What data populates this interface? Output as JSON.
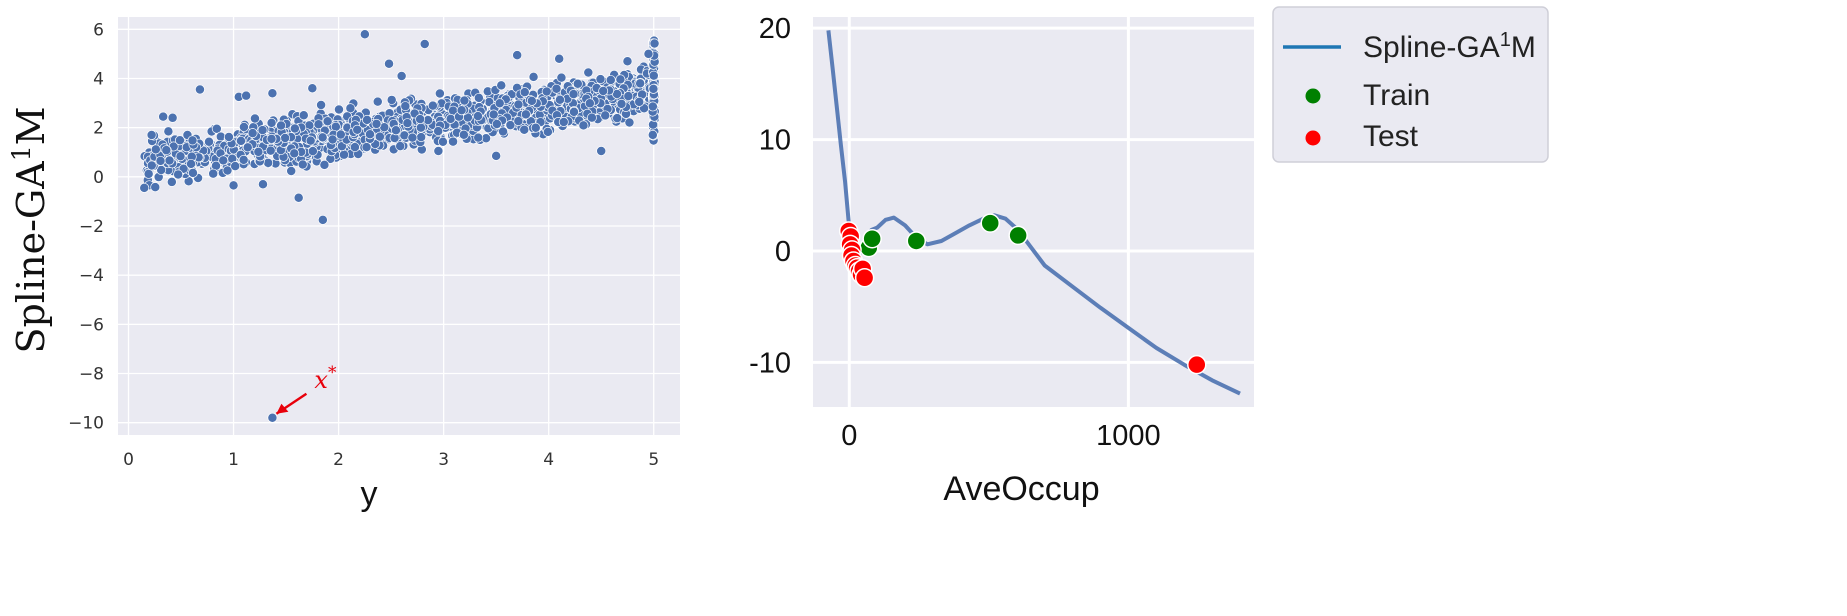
{
  "colors": {
    "panel_bg": "#eaeaf2",
    "grid": "#ffffff",
    "point": "#4c72b0",
    "train": "#008000",
    "test": "#ff0000",
    "spline": "#4c72b0",
    "legend_line": "#1f77b4",
    "annotation": "#e8000b"
  },
  "chart_data": [
    {
      "type": "scatter",
      "xlabel": "y",
      "ylabel": "Spline-GA",
      "ylabel_sup": "1",
      "ylabel_tail": "M",
      "xlim": [
        -0.1,
        5.25
      ],
      "ylim": [
        -10.5,
        6.5
      ],
      "x_ticks": [
        0,
        1,
        2,
        3,
        4,
        5
      ],
      "x_tick_labels": [
        "0",
        "1",
        "2",
        "3",
        "4",
        "5"
      ],
      "y_ticks": [
        6,
        4,
        2,
        0,
        -2,
        -4,
        -6,
        -8,
        -10
      ],
      "y_tick_labels": [
        "6",
        "4",
        "2",
        "0",
        "−2",
        "−4",
        "−6",
        "−8",
        "−10"
      ],
      "grid": true,
      "cloud_description": "dense point cloud; y rises roughly linearly with x",
      "cloud_trend": {
        "x_range": [
          0.15,
          5.0
        ],
        "intercept": 0.5,
        "slope": 0.6,
        "spread": 0.45
      },
      "outliers": [
        {
          "x": 0.15,
          "y": -0.45
        },
        {
          "x": 0.22,
          "y": 1.7
        },
        {
          "x": 0.33,
          "y": 2.45
        },
        {
          "x": 0.68,
          "y": 3.55
        },
        {
          "x": 1.05,
          "y": 3.25
        },
        {
          "x": 1.12,
          "y": 3.3
        },
        {
          "x": 1.37,
          "y": 3.4
        },
        {
          "x": 1.62,
          "y": -0.85
        },
        {
          "x": 1.85,
          "y": -1.75
        },
        {
          "x": 2.25,
          "y": 5.8
        },
        {
          "x": 2.82,
          "y": 5.4
        },
        {
          "x": 2.48,
          "y": 4.6
        },
        {
          "x": 1.28,
          "y": -0.3
        },
        {
          "x": 1.75,
          "y": 3.6
        },
        {
          "x": 4.5,
          "y": 1.05
        },
        {
          "x": 3.7,
          "y": 4.95
        },
        {
          "x": 4.75,
          "y": 4.7
        },
        {
          "x": 4.95,
          "y": 5.0
        },
        {
          "x": 0.42,
          "y": 2.4
        },
        {
          "x": 2.95,
          "y": 1.05
        },
        {
          "x": 3.5,
          "y": 0.85
        },
        {
          "x": 1.0,
          "y": -0.35
        },
        {
          "x": 2.6,
          "y": 4.1
        },
        {
          "x": 4.1,
          "y": 4.8
        }
      ],
      "cap_column": {
        "x": 5.0,
        "y_min": 1.4,
        "y_max": 5.6
      },
      "special_point": {
        "x": 1.37,
        "y": -9.8
      },
      "annotation": {
        "text": "x",
        "sup": "*"
      }
    },
    {
      "type": "line",
      "xlabel": "AveOccup",
      "xlim": [
        -130,
        1450
      ],
      "ylim": [
        -14,
        21
      ],
      "x_ticks": [
        0,
        1000
      ],
      "x_tick_labels": [
        "0",
        "1000"
      ],
      "y_ticks": [
        20,
        10,
        0,
        -10
      ],
      "y_tick_labels": [
        "20",
        "10",
        "0",
        "-10"
      ],
      "grid": true,
      "legend_position": "outside-right",
      "series": [
        {
          "name": "Spline-GA",
          "name_sup": "1",
          "name_tail": "M",
          "kind": "line",
          "x": [
            -75,
            -60,
            -45,
            -30,
            -15,
            0,
            15,
            30,
            45,
            60,
            80,
            100,
            130,
            160,
            200,
            240,
            280,
            330,
            380,
            430,
            480,
            520,
            560,
            600,
            640,
            700,
            800,
            900,
            1000,
            1100,
            1200,
            1300,
            1400
          ],
          "y": [
            19.8,
            16.5,
            13.0,
            9.5,
            6.2,
            2.0,
            -0.2,
            -0.6,
            0.2,
            1.3,
            1.9,
            2.1,
            2.8,
            3.0,
            2.3,
            1.2,
            0.6,
            0.9,
            1.6,
            2.3,
            2.9,
            3.2,
            2.9,
            2.0,
            0.7,
            -1.3,
            -3.2,
            -5.1,
            -6.9,
            -8.7,
            -10.2,
            -11.6,
            -12.8
          ]
        },
        {
          "name": "Train",
          "kind": "scatter",
          "x": [
            70,
            82,
            240,
            505,
            605
          ],
          "y": [
            0.3,
            1.1,
            0.9,
            2.5,
            1.4
          ]
        },
        {
          "name": "Test",
          "kind": "scatter",
          "x": [
            -2,
            5,
            3,
            10,
            8,
            15,
            22,
            28,
            35,
            42,
            48,
            55,
            1245
          ],
          "y": [
            1.8,
            1.3,
            0.6,
            0.1,
            -0.4,
            -0.9,
            -1.3,
            -1.5,
            -1.8,
            -2.1,
            -1.6,
            -2.4,
            -10.2
          ]
        }
      ]
    }
  ]
}
